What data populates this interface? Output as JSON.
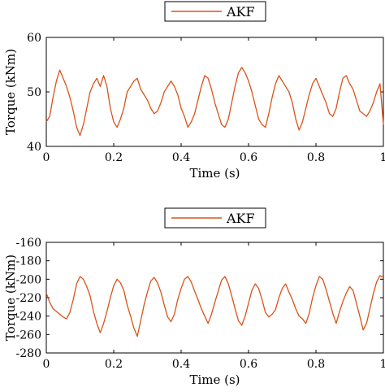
{
  "chart_data": [
    {
      "type": "line",
      "xlabel": "Time (s)",
      "ylabel": "Torque (kNm)",
      "xlim": [
        0,
        1
      ],
      "ylim": [
        40,
        60
      ],
      "xticks": [
        "0",
        "0.2",
        "0.4",
        "0.6",
        "0.8",
        "1"
      ],
      "yticks": [
        "40",
        "50",
        "60"
      ],
      "legend_position": "top-center-outside",
      "series": [
        {
          "name": "AKF",
          "color": "#d95319",
          "x": [
            0,
            0.01,
            0.02,
            0.03,
            0.04,
            0.05,
            0.06,
            0.07,
            0.08,
            0.09,
            0.1,
            0.11,
            0.12,
            0.13,
            0.14,
            0.15,
            0.16,
            0.17,
            0.18,
            0.19,
            0.2,
            0.21,
            0.22,
            0.23,
            0.24,
            0.25,
            0.26,
            0.27,
            0.28,
            0.29,
            0.3,
            0.31,
            0.32,
            0.33,
            0.34,
            0.35,
            0.36,
            0.37,
            0.38,
            0.39,
            0.4,
            0.41,
            0.42,
            0.43,
            0.44,
            0.45,
            0.46,
            0.47,
            0.48,
            0.49,
            0.5,
            0.51,
            0.52,
            0.53,
            0.54,
            0.55,
            0.56,
            0.57,
            0.58,
            0.59,
            0.6,
            0.61,
            0.62,
            0.63,
            0.64,
            0.65,
            0.66,
            0.67,
            0.68,
            0.69,
            0.7,
            0.71,
            0.72,
            0.73,
            0.74,
            0.75,
            0.76,
            0.77,
            0.78,
            0.79,
            0.8,
            0.81,
            0.82,
            0.83,
            0.84,
            0.85,
            0.86,
            0.87,
            0.88,
            0.89,
            0.9,
            0.91,
            0.92,
            0.93,
            0.94,
            0.95,
            0.96,
            0.97,
            0.98,
            0.99,
            1.0
          ],
          "values": [
            44.5,
            45.5,
            49,
            52,
            54,
            52.5,
            51,
            49,
            46.5,
            43.5,
            42,
            44,
            47,
            50,
            51.5,
            52.5,
            51,
            53,
            51,
            47,
            44.5,
            43.5,
            45,
            47,
            50,
            51,
            52,
            52.5,
            50.5,
            49.5,
            48.5,
            47,
            46,
            46.5,
            48,
            50,
            51,
            52,
            51,
            49.5,
            47,
            45.5,
            43.5,
            44.5,
            46,
            48.5,
            51,
            53,
            52.5,
            50.5,
            48,
            46,
            44,
            43.5,
            45,
            48,
            51,
            53.5,
            54.5,
            53.5,
            52,
            50,
            47.5,
            45,
            44,
            43.5,
            46,
            49,
            51.5,
            53,
            52,
            51,
            50,
            48,
            45,
            43,
            44.5,
            47,
            49.5,
            51.5,
            52.5,
            51,
            49.5,
            48,
            46,
            45.5,
            47,
            50,
            52.5,
            53,
            51.5,
            50.5,
            48.5,
            46.5,
            46,
            45.5,
            46.5,
            48,
            50,
            51.5,
            44
          ]
        }
      ]
    },
    {
      "type": "line",
      "xlabel": "Time (s)",
      "ylabel": "Torque (kNm)",
      "xlim": [
        0,
        1
      ],
      "ylim": [
        -280,
        -160
      ],
      "xticks": [
        "0",
        "0.2",
        "0.4",
        "0.6",
        "0.8",
        "1"
      ],
      "yticks": [
        "-280",
        "-260",
        "-240",
        "-220",
        "-200",
        "-180",
        "-160"
      ],
      "legend_position": "top-center-outside",
      "series": [
        {
          "name": "AKF",
          "color": "#d95319",
          "x": [
            0,
            0.01,
            0.02,
            0.03,
            0.04,
            0.05,
            0.06,
            0.07,
            0.08,
            0.09,
            0.1,
            0.11,
            0.12,
            0.13,
            0.14,
            0.15,
            0.16,
            0.17,
            0.18,
            0.19,
            0.2,
            0.21,
            0.22,
            0.23,
            0.24,
            0.25,
            0.26,
            0.27,
            0.28,
            0.29,
            0.3,
            0.31,
            0.32,
            0.33,
            0.34,
            0.35,
            0.36,
            0.37,
            0.38,
            0.39,
            0.4,
            0.41,
            0.42,
            0.43,
            0.44,
            0.45,
            0.46,
            0.47,
            0.48,
            0.49,
            0.5,
            0.51,
            0.52,
            0.53,
            0.54,
            0.55,
            0.56,
            0.57,
            0.58,
            0.59,
            0.6,
            0.61,
            0.62,
            0.63,
            0.64,
            0.65,
            0.66,
            0.67,
            0.68,
            0.69,
            0.7,
            0.71,
            0.72,
            0.73,
            0.74,
            0.75,
            0.76,
            0.77,
            0.78,
            0.79,
            0.8,
            0.81,
            0.82,
            0.83,
            0.84,
            0.85,
            0.86,
            0.87,
            0.88,
            0.89,
            0.9,
            0.91,
            0.92,
            0.93,
            0.94,
            0.95,
            0.96,
            0.97,
            0.98,
            0.99,
            1.0
          ],
          "values": [
            -215,
            -225,
            -232,
            -235,
            -238,
            -241,
            -243,
            -236,
            -222,
            -205,
            -197,
            -200,
            -208,
            -218,
            -235,
            -248,
            -258,
            -248,
            -235,
            -220,
            -207,
            -200,
            -204,
            -212,
            -228,
            -240,
            -253,
            -262,
            -245,
            -228,
            -214,
            -202,
            -198,
            -204,
            -214,
            -228,
            -241,
            -246,
            -238,
            -222,
            -210,
            -200,
            -197,
            -203,
            -213,
            -222,
            -232,
            -240,
            -248,
            -238,
            -225,
            -213,
            -201,
            -197,
            -205,
            -218,
            -232,
            -245,
            -250,
            -240,
            -226,
            -212,
            -205,
            -210,
            -222,
            -236,
            -241,
            -238,
            -233,
            -220,
            -210,
            -205,
            -214,
            -222,
            -232,
            -240,
            -243,
            -248,
            -237,
            -220,
            -207,
            -197,
            -200,
            -211,
            -224,
            -237,
            -248,
            -235,
            -224,
            -215,
            -208,
            -212,
            -226,
            -240,
            -255,
            -248,
            -232,
            -216,
            -203,
            -196,
            -198
          ]
        }
      ]
    }
  ]
}
